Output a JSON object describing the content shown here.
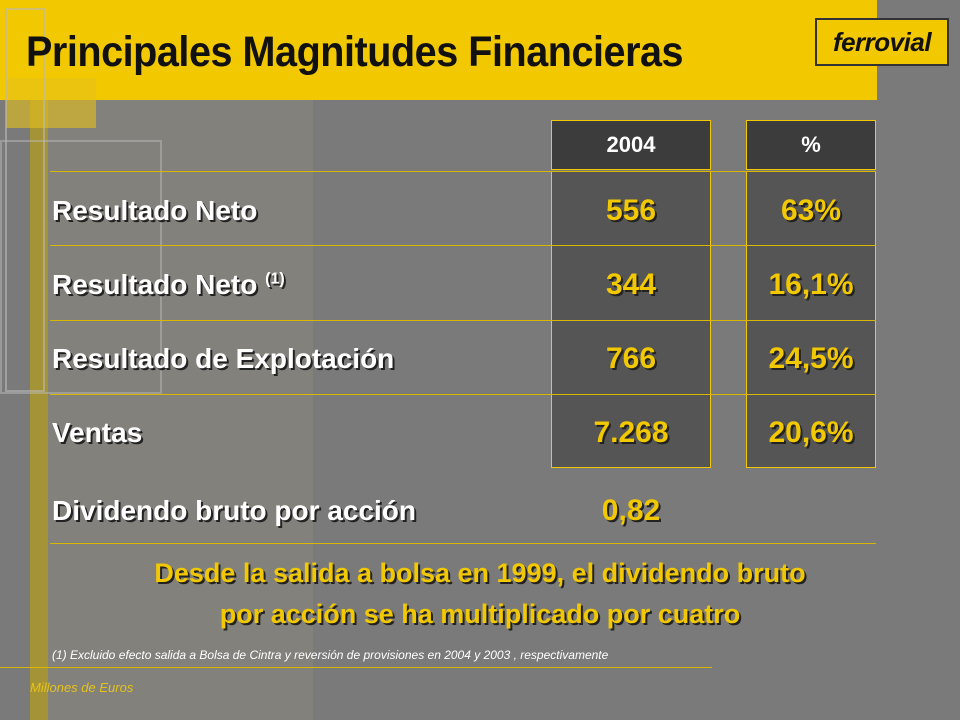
{
  "title": "Principales Magnitudes Financieras",
  "logo": "ferrovial",
  "columns": {
    "year": "2004",
    "pct": "%"
  },
  "rows": [
    {
      "label": "Resultado Neto",
      "sup": "",
      "value": "556",
      "pct": "63%"
    },
    {
      "label": "Resultado Neto ",
      "sup": "(1)",
      "value": "344",
      "pct": "16,1%"
    },
    {
      "label": "Resultado de Explotación",
      "sup": "",
      "value": "766",
      "pct": "24,5%"
    },
    {
      "label": "Ventas",
      "sup": "",
      "value": "7.268",
      "pct": "20,6%"
    }
  ],
  "dividend": {
    "label": "Dividendo bruto por acción",
    "value": "0,82"
  },
  "note": {
    "line1": "Desde la salida a bolsa en 1999, el dividendo bruto",
    "line2": "por acción se ha multiplicado por cuatro"
  },
  "footnote": "(1) Excluido efecto salida a Bolsa de Cintra y reversión de provisiones en 2004 y 2003 , respectivamente",
  "units": "Millones de Euros"
}
